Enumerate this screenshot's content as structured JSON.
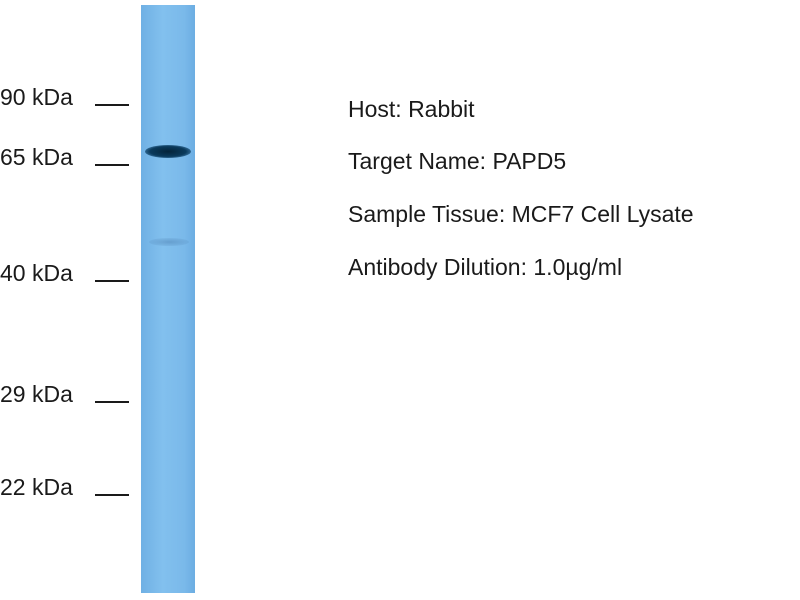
{
  "markers": [
    {
      "label": "90 kDa"
    },
    {
      "label": "65 kDa"
    },
    {
      "label": "40 kDa"
    },
    {
      "label": "29 kDa"
    },
    {
      "label": "22 kDa"
    }
  ],
  "info": {
    "host": "Host: Rabbit",
    "target": "Target Name: PAPD5",
    "tissue": "Sample Tissue: MCF7 Cell Lysate",
    "dilution": "Antibody Dilution: 1.0µg/ml"
  },
  "colors": {
    "lane": "#7ab9ea",
    "band": "#0a3a5c"
  }
}
